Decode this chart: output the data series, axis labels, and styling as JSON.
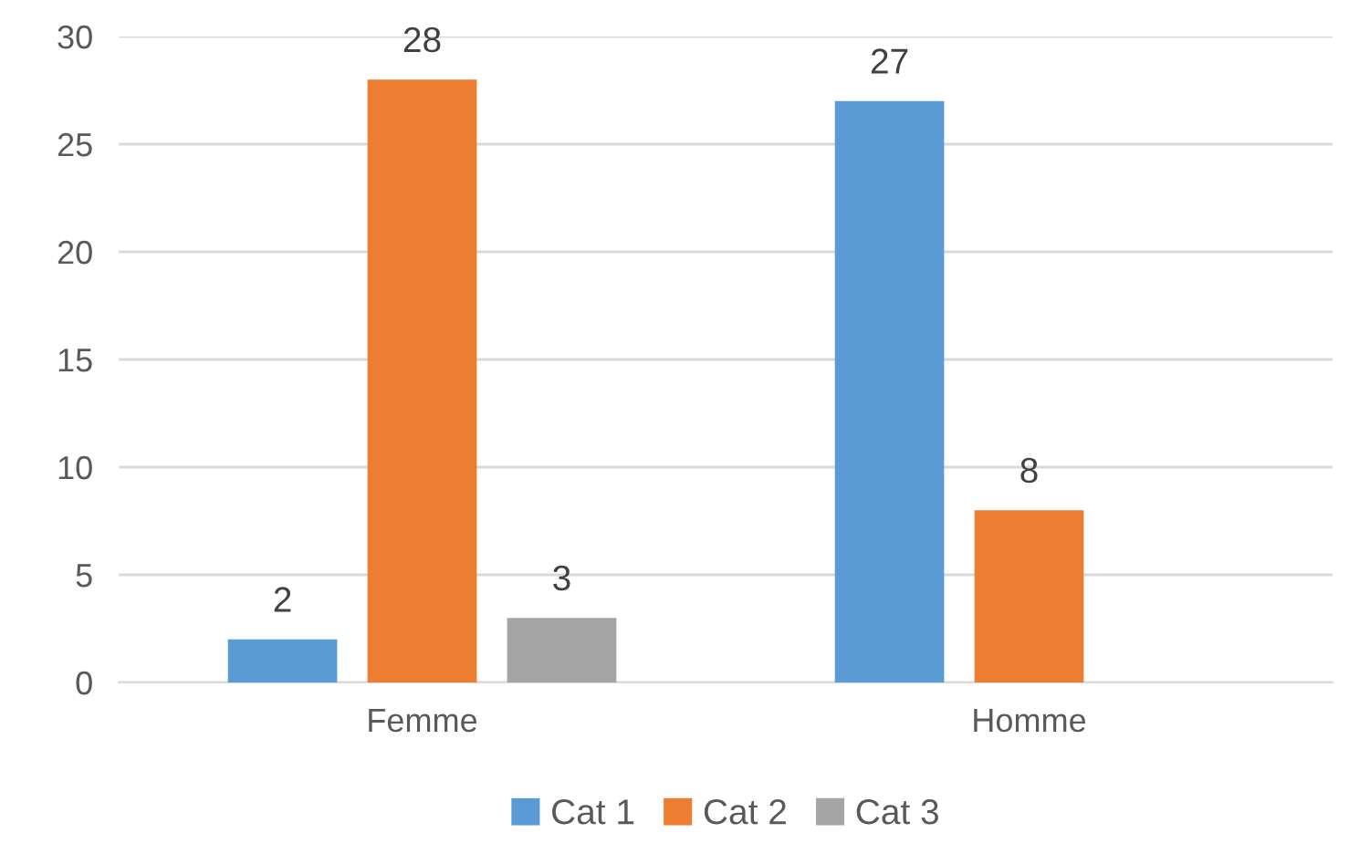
{
  "chart_data": {
    "type": "bar",
    "categories": [
      "Femme",
      "Homme"
    ],
    "series": [
      {
        "name": "Cat 1",
        "color": "#5b9bd5",
        "values": [
          2,
          27
        ]
      },
      {
        "name": "Cat 2",
        "color": "#ed7d31",
        "values": [
          28,
          8
        ]
      },
      {
        "name": "Cat 3",
        "color": "#a5a5a5",
        "values": [
          3,
          null
        ]
      }
    ],
    "ylim": [
      0,
      30
    ],
    "yticks": [
      0,
      5,
      10,
      15,
      20,
      25,
      30
    ],
    "grid": "y",
    "legend": "bottom",
    "data_labels": true
  }
}
